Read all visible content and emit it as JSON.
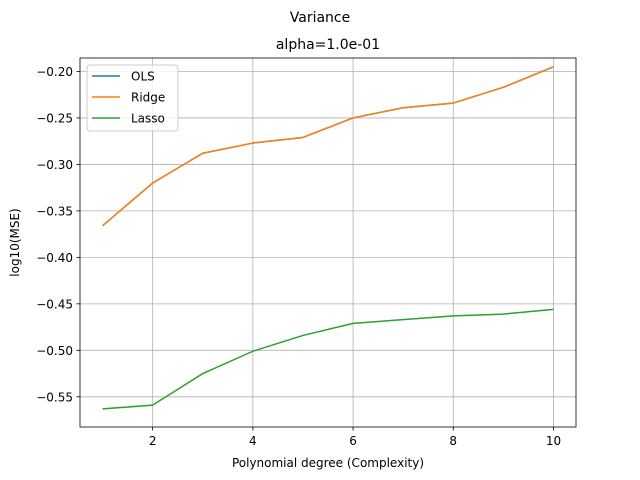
{
  "chart_data": {
    "type": "line",
    "suptitle": "Variance",
    "title": "alpha=1.0e-01",
    "xlabel": "Polynomial degree (Complexity)",
    "ylabel": "log10(MSE)",
    "xlim": [
      0.55,
      10.45
    ],
    "ylim": [
      -0.5825,
      -0.1855
    ],
    "xticks": [
      2,
      4,
      6,
      8,
      10
    ],
    "xtick_labels": [
      "2",
      "4",
      "6",
      "8",
      "10"
    ],
    "yticks": [
      -0.55,
      -0.5,
      -0.45,
      -0.4,
      -0.35,
      -0.3,
      -0.25,
      -0.2
    ],
    "ytick_labels": [
      "−0.55",
      "−0.50",
      "−0.45",
      "−0.40",
      "−0.35",
      "−0.30",
      "−0.25",
      "−0.20"
    ],
    "grid": true,
    "legend_position": "top-left",
    "x": [
      1,
      2,
      3,
      4,
      5,
      6,
      7,
      8,
      9,
      10
    ],
    "series": [
      {
        "name": "OLS",
        "color": "#1f77b4",
        "values": [
          -0.366,
          -0.32,
          -0.288,
          -0.277,
          -0.271,
          -0.25,
          -0.239,
          -0.234,
          -0.217,
          -0.195
        ]
      },
      {
        "name": "Ridge",
        "color": "#ff7f0e",
        "values": [
          -0.366,
          -0.32,
          -0.288,
          -0.277,
          -0.271,
          -0.25,
          -0.239,
          -0.234,
          -0.217,
          -0.195
        ]
      },
      {
        "name": "Lasso",
        "color": "#2ca02c",
        "values": [
          -0.563,
          -0.559,
          -0.525,
          -0.501,
          -0.484,
          -0.471,
          -0.467,
          -0.463,
          -0.461,
          -0.456
        ]
      }
    ]
  }
}
